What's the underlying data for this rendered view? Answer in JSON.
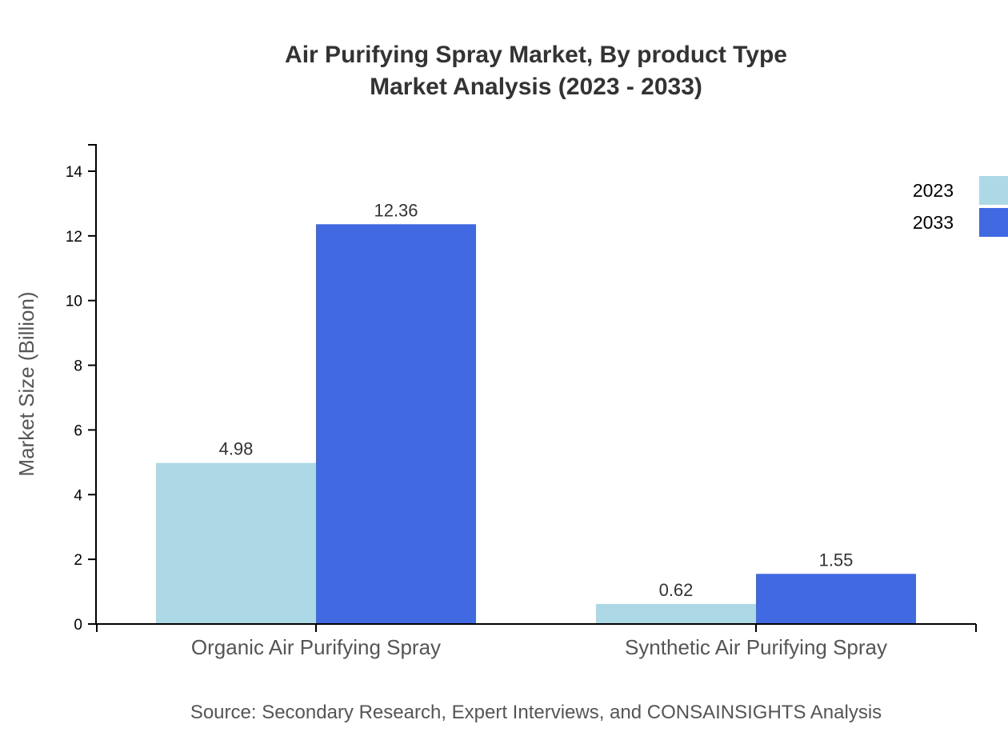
{
  "title": {
    "line1": "Air Purifying Spray Market, By product Type",
    "line2": "Market Analysis (2023 - 2033)"
  },
  "source": "Source: Secondary Research, Expert Interviews, and CONSAINSIGHTS Analysis",
  "colors": {
    "2023": "#ADD8E6",
    "2033": "#4169E1",
    "axis": "#000000",
    "text": "#333333"
  },
  "chart_data": {
    "type": "bar",
    "title": "Air Purifying Spray Market, By product Type Market Analysis (2023 - 2033)",
    "xlabel": "",
    "ylabel": "Market Size (Billion)",
    "categories": [
      "Organic Air Purifying Spray",
      "Synthetic Air Purifying Spray"
    ],
    "series": [
      {
        "name": "2023",
        "values": [
          4.98,
          0.62
        ],
        "color": "#ADD8E6"
      },
      {
        "name": "2033",
        "values": [
          12.36,
          1.55
        ],
        "color": "#4169E1"
      }
    ],
    "value_labels": [
      [
        "4.98",
        "0.62"
      ],
      [
        "12.36",
        "1.55"
      ]
    ],
    "ylim": [
      0,
      14.8
    ],
    "yticks": [
      0,
      2,
      4,
      6,
      8,
      10,
      12,
      14
    ],
    "grid": false,
    "legend": {
      "position": "top-right",
      "entries": [
        "2023",
        "2033"
      ]
    }
  }
}
